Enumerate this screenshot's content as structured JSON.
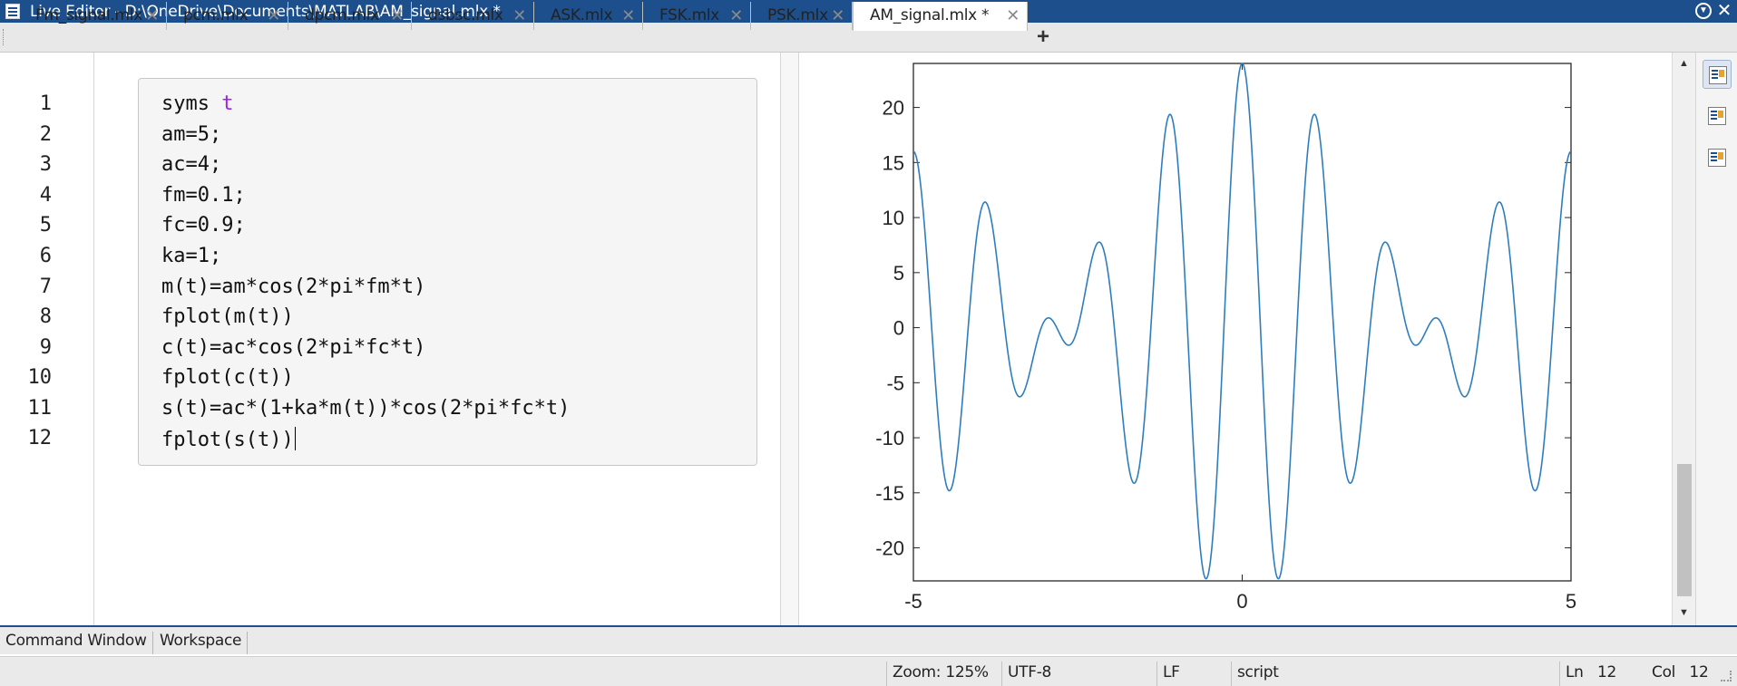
{
  "window": {
    "title": "Live Editor - D:\\OneDrive\\Documents\\MATLAB\\AM_signal.mlx *"
  },
  "tabs": [
    {
      "label": "Fm_signal.mlx",
      "close": "✕"
    },
    {
      "label": "pcm.mlx",
      "close": "✕"
    },
    {
      "label": "dpcm.mlx",
      "close": "✕"
    },
    {
      "label": "dsbsc.mlx",
      "close": "✕"
    },
    {
      "label": "ASK.mlx",
      "close": "✕"
    },
    {
      "label": "FSK.mlx",
      "close": "✕"
    },
    {
      "label": "PSK.mlx",
      "close": "✕"
    },
    {
      "label": "AM_signal.mlx *",
      "close": "✕"
    }
  ],
  "tab_add": "+",
  "editor": {
    "line_numbers": [
      "1",
      "2",
      "3",
      "4",
      "5",
      "6",
      "7",
      "8",
      "9",
      "10",
      "11",
      "12"
    ],
    "code": [
      {
        "text": "syms ",
        "keyword": "t"
      },
      {
        "text": "am=5;"
      },
      {
        "text": "ac=4;"
      },
      {
        "text": "fm=0.1;"
      },
      {
        "text": "fc=0.9;"
      },
      {
        "text": "ka=1;"
      },
      {
        "text": "m(t)=am*cos(2*pi*fm*t)"
      },
      {
        "text": "fplot(m(t))"
      },
      {
        "text": "c(t)=ac*cos(2*pi*fc*t)"
      },
      {
        "text": "fplot(c(t))"
      },
      {
        "text": "s(t)=ac*(1+ka*m(t))*cos(2*pi*fc*t)"
      },
      {
        "text": "fplot(s(t))"
      }
    ]
  },
  "chart_data": {
    "type": "line",
    "function": "s(t)=4*(1+5*cos(2*pi*0.1*t))*cos(2*pi*0.9*t)",
    "x_range": [
      -5,
      5
    ],
    "xlim": [
      -5,
      5
    ],
    "ylim": [
      -23,
      24
    ],
    "x_ticks": [
      "-5",
      "0",
      "5"
    ],
    "y_ticks": [
      "20",
      "15",
      "10",
      "5",
      "0",
      "-5",
      "-10",
      "-15",
      "-20"
    ],
    "line_color": "#2e7dbe",
    "title": "",
    "xlabel": "",
    "ylabel": ""
  },
  "bottom_tabs": [
    "Command Window",
    "Workspace"
  ],
  "status": {
    "zoom": "Zoom: 125%",
    "encoding": "UTF-8",
    "line_ending": "LF",
    "type": "script",
    "ln_label": "Ln",
    "ln": "12",
    "col_label": "Col",
    "col": "12"
  },
  "colors": {
    "titlebar": "#1c4f8c",
    "keyword": "#a020f0"
  }
}
